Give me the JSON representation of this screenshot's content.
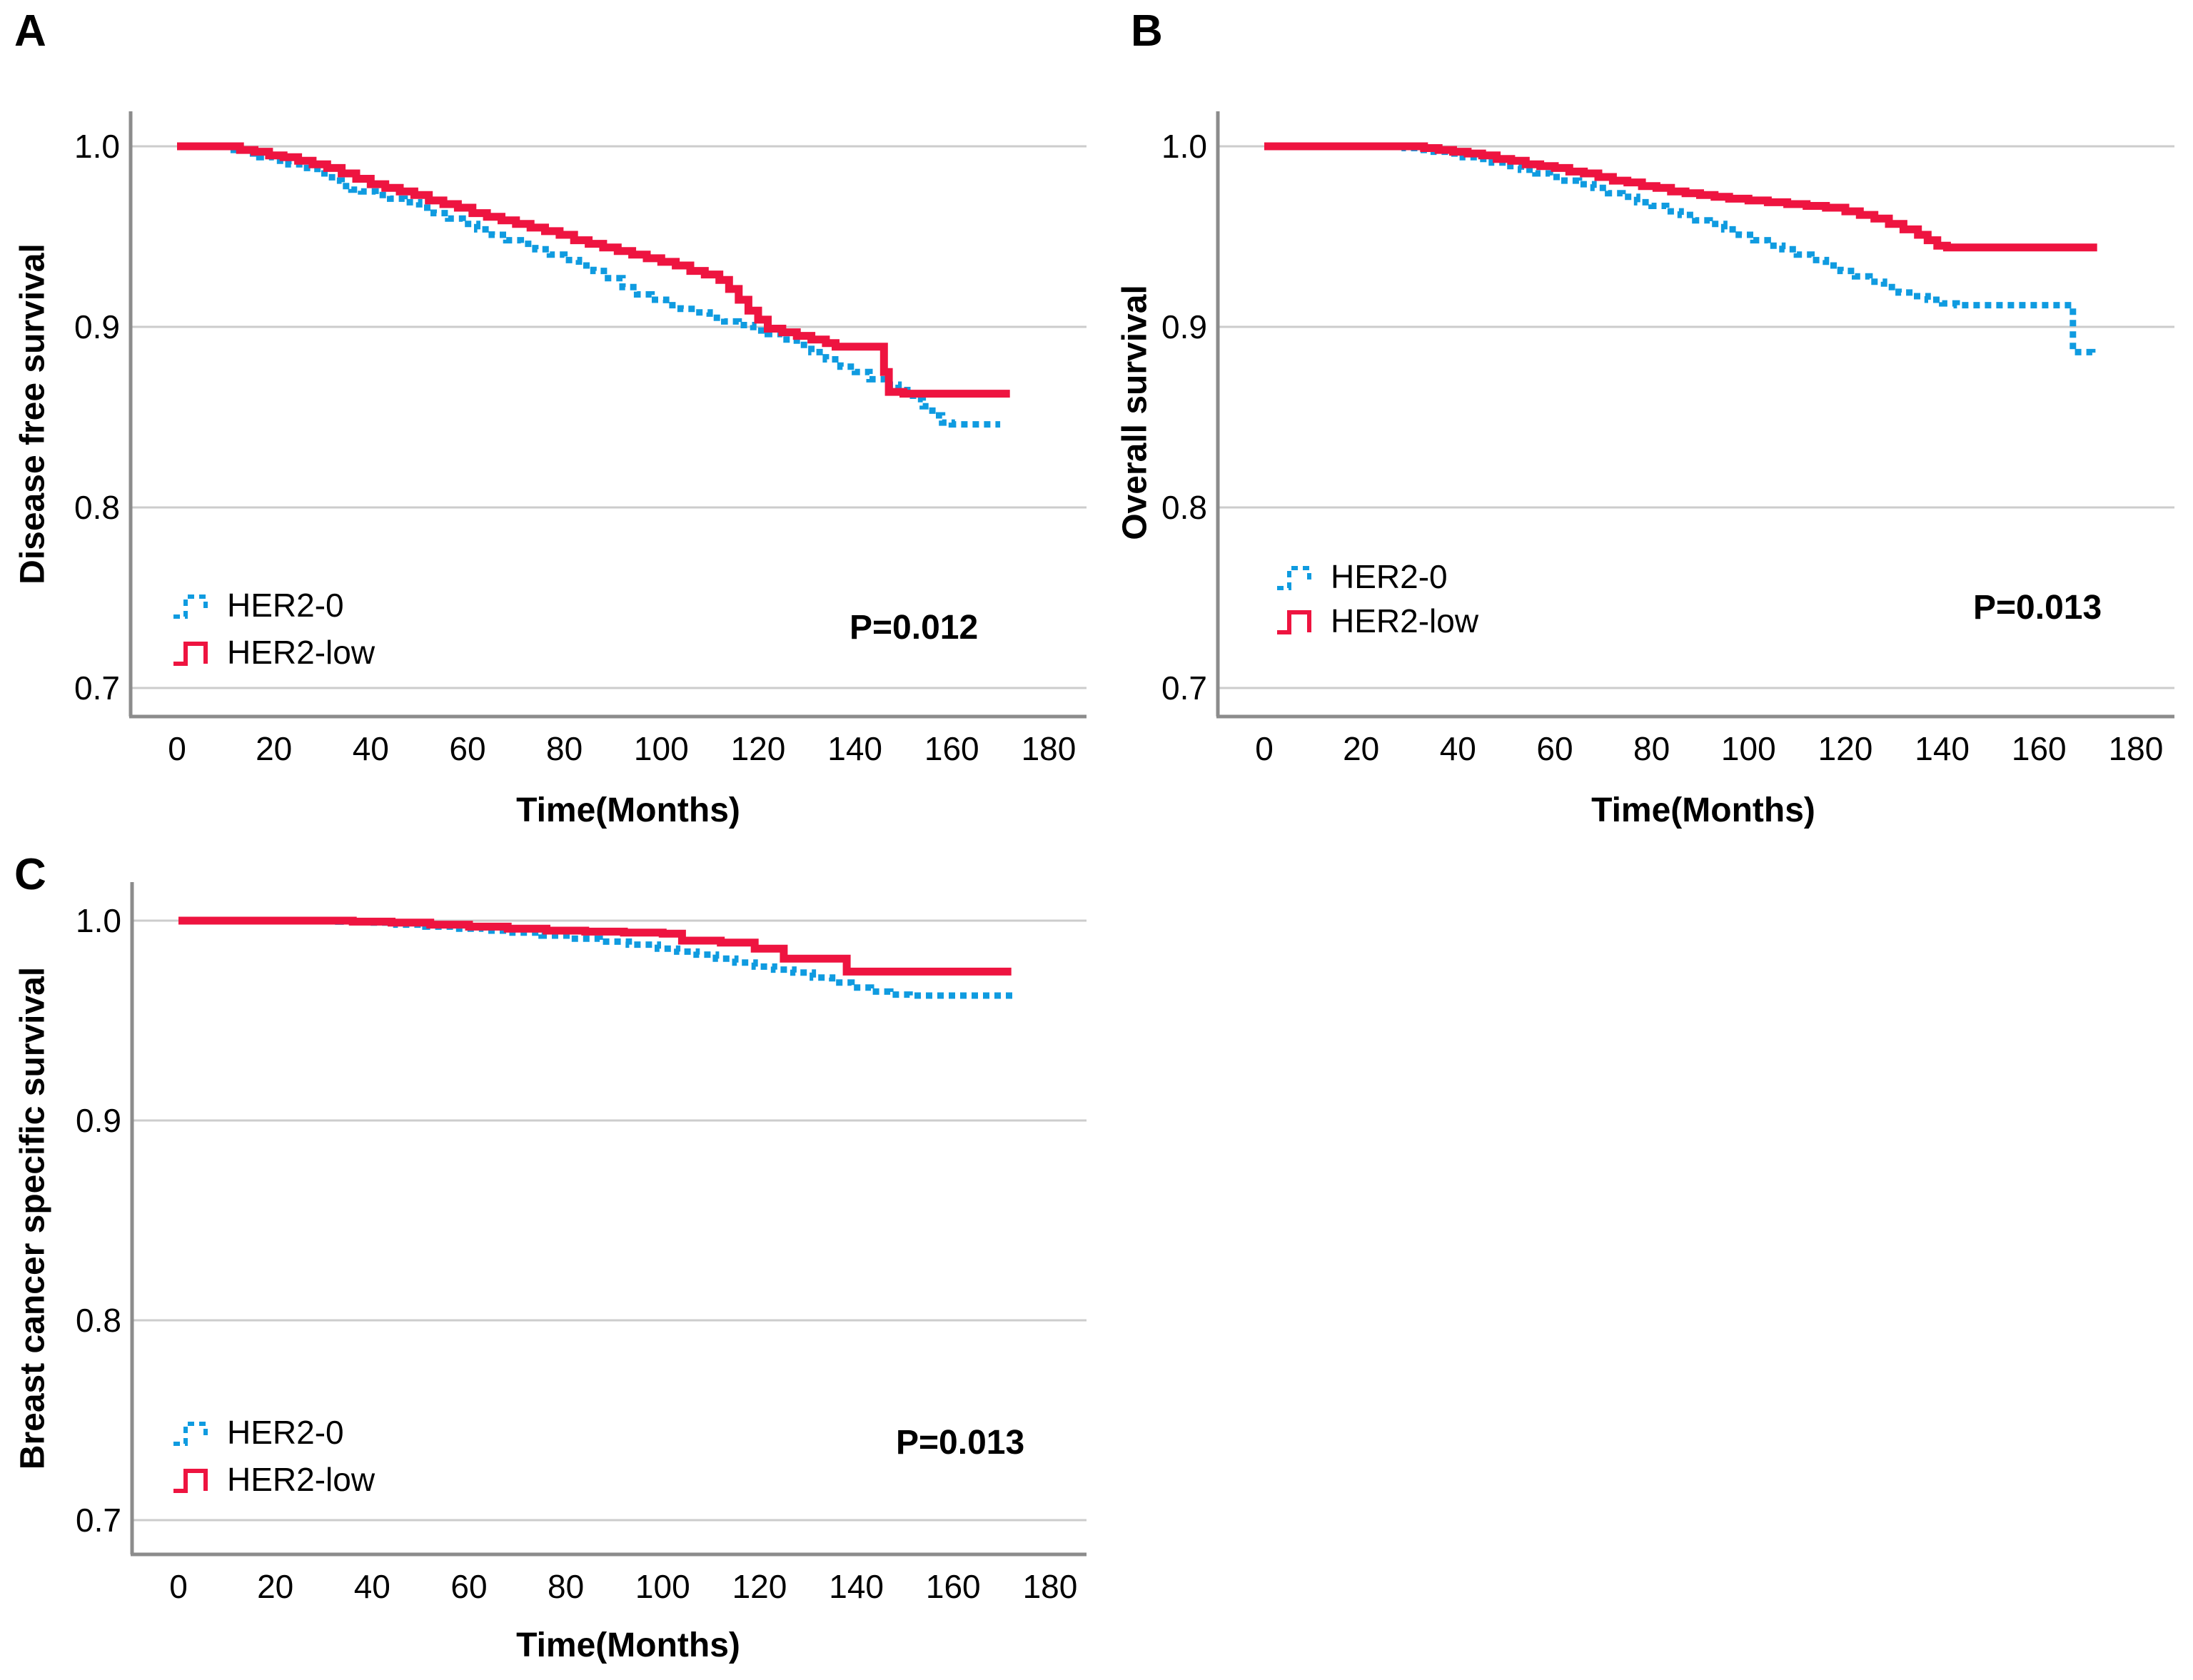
{
  "figure_background": "#ffffff",
  "colors": {
    "her2_0": "#0F9BE0",
    "her2_low": "#EE1440",
    "grid": "#CCCCCC",
    "axis": "#8C8C8C",
    "text": "#000000"
  },
  "legend": {
    "items": [
      {
        "label": "HER2-0",
        "key": "her2_0",
        "line_style": "dashed"
      },
      {
        "label": "HER2-low",
        "key": "her2_low",
        "line_style": "solid"
      }
    ]
  },
  "chart_data": [
    {
      "type": "line",
      "subtype": "kaplan-meier-step",
      "letter": "A",
      "ylabel": "Disease free survival",
      "xlabel": "Time(Months)",
      "p_value": "P=0.012",
      "x_ticks": [
        0,
        20,
        40,
        60,
        80,
        100,
        120,
        140,
        160,
        180
      ],
      "y_ticks": [
        "1.0",
        "0.9",
        "0.8",
        "0.7"
      ],
      "xlim": [
        0,
        188
      ],
      "ylim": [
        0.685,
        1.018
      ],
      "grid": "horizontal",
      "legend_position": "lower-left",
      "series": [
        {
          "name": "HER2-0",
          "color_key": "her2_0",
          "style": "dotted",
          "points": [
            [
              0,
              1.0
            ],
            [
              8,
              1.0
            ],
            [
              11,
              0.998
            ],
            [
              14,
              0.996
            ],
            [
              17,
              0.994
            ],
            [
              20,
              0.992
            ],
            [
              23,
              0.99
            ],
            [
              26,
              0.988
            ],
            [
              29,
              0.985
            ],
            [
              32,
              0.981
            ],
            [
              34,
              0.978
            ],
            [
              36,
              0.976
            ],
            [
              38,
              0.975
            ],
            [
              41,
              0.973
            ],
            [
              44,
              0.971
            ],
            [
              47,
              0.969
            ],
            [
              50,
              0.966
            ],
            [
              53,
              0.963
            ],
            [
              56,
              0.96
            ],
            [
              59,
              0.957
            ],
            [
              62,
              0.954
            ],
            [
              65,
              0.951
            ],
            [
              68,
              0.948
            ],
            [
              71,
              0.946
            ],
            [
              74,
              0.943
            ],
            [
              77,
              0.94
            ],
            [
              80,
              0.937
            ],
            [
              83,
              0.934
            ],
            [
              86,
              0.931
            ],
            [
              89,
              0.927
            ],
            [
              92,
              0.922
            ],
            [
              95,
              0.918
            ],
            [
              98,
              0.915
            ],
            [
              101,
              0.912
            ],
            [
              104,
              0.91
            ],
            [
              107,
              0.908
            ],
            [
              110,
              0.905
            ],
            [
              113,
              0.903
            ],
            [
              116,
              0.901
            ],
            [
              119,
              0.898
            ],
            [
              122,
              0.896
            ],
            [
              125,
              0.893
            ],
            [
              128,
              0.89
            ],
            [
              131,
              0.886
            ],
            [
              134,
              0.882
            ],
            [
              137,
              0.878
            ],
            [
              140,
              0.875
            ],
            [
              143,
              0.871
            ],
            [
              146,
              0.868
            ],
            [
              149,
              0.865
            ],
            [
              152,
              0.86
            ],
            [
              154,
              0.856
            ],
            [
              156,
              0.851
            ],
            [
              158,
              0.847
            ],
            [
              160,
              0.846
            ],
            [
              170,
              0.846
            ]
          ]
        },
        {
          "name": "HER2-low",
          "color_key": "her2_low",
          "style": "solid",
          "points": [
            [
              0,
              1.0
            ],
            [
              10,
              1.0
            ],
            [
              13,
              0.998
            ],
            [
              16,
              0.997
            ],
            [
              19,
              0.995
            ],
            [
              22,
              0.994
            ],
            [
              25,
              0.992
            ],
            [
              28,
              0.99
            ],
            [
              31,
              0.988
            ],
            [
              34,
              0.985
            ],
            [
              37,
              0.982
            ],
            [
              40,
              0.979
            ],
            [
              43,
              0.977
            ],
            [
              46,
              0.975
            ],
            [
              49,
              0.973
            ],
            [
              52,
              0.97
            ],
            [
              55,
              0.968
            ],
            [
              58,
              0.966
            ],
            [
              61,
              0.963
            ],
            [
              64,
              0.961
            ],
            [
              67,
              0.959
            ],
            [
              70,
              0.957
            ],
            [
              73,
              0.955
            ],
            [
              76,
              0.953
            ],
            [
              79,
              0.951
            ],
            [
              82,
              0.948
            ],
            [
              85,
              0.946
            ],
            [
              88,
              0.944
            ],
            [
              91,
              0.942
            ],
            [
              94,
              0.94
            ],
            [
              97,
              0.938
            ],
            [
              100,
              0.936
            ],
            [
              103,
              0.934
            ],
            [
              106,
              0.931
            ],
            [
              109,
              0.929
            ],
            [
              112,
              0.926
            ],
            [
              114,
              0.921
            ],
            [
              116,
              0.915
            ],
            [
              118,
              0.909
            ],
            [
              120,
              0.904
            ],
            [
              122,
              0.899
            ],
            [
              125,
              0.897
            ],
            [
              128,
              0.895
            ],
            [
              131,
              0.893
            ],
            [
              134,
              0.891
            ],
            [
              136,
              0.889
            ],
            [
              145,
              0.889
            ],
            [
              146,
              0.875
            ],
            [
              147,
              0.864
            ],
            [
              150,
              0.863
            ],
            [
              172,
              0.863
            ]
          ]
        }
      ]
    },
    {
      "type": "line",
      "subtype": "kaplan-meier-step",
      "letter": "B",
      "ylabel": "Overall survival",
      "xlabel": "Time(Months)",
      "p_value": "P=0.013",
      "x_ticks": [
        0,
        20,
        40,
        60,
        80,
        100,
        120,
        140,
        160,
        180
      ],
      "y_ticks": [
        "1.0",
        "0.9",
        "0.8",
        "0.7"
      ],
      "xlim": [
        0,
        188
      ],
      "ylim": [
        0.685,
        1.018
      ],
      "grid": "horizontal",
      "legend_position": "lower-left",
      "series": [
        {
          "name": "HER2-0",
          "color_key": "her2_0",
          "style": "dotted",
          "points": [
            [
              0,
              1.0
            ],
            [
              26,
              1.0
            ],
            [
              29,
              0.999
            ],
            [
              32,
              0.998
            ],
            [
              35,
              0.997
            ],
            [
              38,
              0.996
            ],
            [
              41,
              0.994
            ],
            [
              44,
              0.993
            ],
            [
              47,
              0.991
            ],
            [
              50,
              0.989
            ],
            [
              53,
              0.987
            ],
            [
              56,
              0.985
            ],
            [
              59,
              0.983
            ],
            [
              62,
              0.981
            ],
            [
              65,
              0.979
            ],
            [
              68,
              0.977
            ],
            [
              71,
              0.974
            ],
            [
              74,
              0.972
            ],
            [
              77,
              0.969
            ],
            [
              80,
              0.967
            ],
            [
              83,
              0.964
            ],
            [
              86,
              0.962
            ],
            [
              89,
              0.959
            ],
            [
              92,
              0.957
            ],
            [
              95,
              0.954
            ],
            [
              98,
              0.951
            ],
            [
              101,
              0.948
            ],
            [
              104,
              0.945
            ],
            [
              107,
              0.943
            ],
            [
              110,
              0.94
            ],
            [
              113,
              0.937
            ],
            [
              116,
              0.934
            ],
            [
              119,
              0.931
            ],
            [
              122,
              0.928
            ],
            [
              125,
              0.925
            ],
            [
              128,
              0.922
            ],
            [
              131,
              0.919
            ],
            [
              134,
              0.917
            ],
            [
              137,
              0.915
            ],
            [
              140,
              0.913
            ],
            [
              143,
              0.912
            ],
            [
              166,
              0.912
            ],
            [
              167,
              0.886
            ],
            [
              171,
              0.885
            ]
          ]
        },
        {
          "name": "HER2-low",
          "color_key": "her2_low",
          "style": "solid",
          "points": [
            [
              0,
              1.0
            ],
            [
              30,
              1.0
            ],
            [
              33,
              0.999
            ],
            [
              36,
              0.998
            ],
            [
              39,
              0.997
            ],
            [
              42,
              0.996
            ],
            [
              45,
              0.995
            ],
            [
              48,
              0.993
            ],
            [
              51,
              0.992
            ],
            [
              54,
              0.99
            ],
            [
              57,
              0.989
            ],
            [
              60,
              0.988
            ],
            [
              63,
              0.986
            ],
            [
              66,
              0.985
            ],
            [
              69,
              0.983
            ],
            [
              72,
              0.981
            ],
            [
              75,
              0.98
            ],
            [
              78,
              0.978
            ],
            [
              81,
              0.977
            ],
            [
              84,
              0.975
            ],
            [
              87,
              0.974
            ],
            [
              90,
              0.973
            ],
            [
              93,
              0.972
            ],
            [
              96,
              0.971
            ],
            [
              100,
              0.97
            ],
            [
              104,
              0.969
            ],
            [
              108,
              0.968
            ],
            [
              112,
              0.967
            ],
            [
              116,
              0.966
            ],
            [
              120,
              0.964
            ],
            [
              123,
              0.962
            ],
            [
              126,
              0.96
            ],
            [
              129,
              0.957
            ],
            [
              132,
              0.954
            ],
            [
              135,
              0.951
            ],
            [
              137,
              0.948
            ],
            [
              139,
              0.945
            ],
            [
              141,
              0.944
            ],
            [
              172,
              0.944
            ]
          ]
        }
      ]
    },
    {
      "type": "line",
      "subtype": "kaplan-meier-step",
      "letter": "C",
      "ylabel": "Breast cancer specific survival",
      "xlabel": "Time(Months)",
      "p_value": "P=0.013",
      "x_ticks": [
        0,
        20,
        40,
        60,
        80,
        100,
        120,
        140,
        160,
        180
      ],
      "y_ticks": [
        "1.0",
        "0.9",
        "0.8",
        "0.7"
      ],
      "xlim": [
        0,
        188
      ],
      "ylim": [
        0.683,
        1.019
      ],
      "grid": "horizontal",
      "legend_position": "lower-left",
      "series": [
        {
          "name": "HER2-0",
          "color_key": "her2_0",
          "style": "dotted",
          "points": [
            [
              0,
              1.0
            ],
            [
              27,
              1.0
            ],
            [
              33,
              0.9995
            ],
            [
              39,
              0.999
            ],
            [
              45,
              0.998
            ],
            [
              51,
              0.997
            ],
            [
              57,
              0.996
            ],
            [
              63,
              0.995
            ],
            [
              69,
              0.994
            ],
            [
              75,
              0.9925
            ],
            [
              81,
              0.991
            ],
            [
              87,
              0.9895
            ],
            [
              93,
              0.988
            ],
            [
              99,
              0.986
            ],
            [
              103,
              0.9845
            ],
            [
              107,
              0.983
            ],
            [
              111,
              0.981
            ],
            [
              115,
              0.979
            ],
            [
              119,
              0.977
            ],
            [
              123,
              0.9755
            ],
            [
              127,
              0.974
            ],
            [
              131,
              0.9715
            ],
            [
              135,
              0.969
            ],
            [
              139,
              0.9665
            ],
            [
              143,
              0.9645
            ],
            [
              147,
              0.963
            ],
            [
              151,
              0.9625
            ],
            [
              173,
              0.9625
            ]
          ]
        },
        {
          "name": "HER2-low",
          "color_key": "her2_low",
          "style": "solid",
          "points": [
            [
              0,
              1.0
            ],
            [
              30,
              1.0
            ],
            [
              36,
              0.9995
            ],
            [
              44,
              0.999
            ],
            [
              52,
              0.998
            ],
            [
              60,
              0.997
            ],
            [
              68,
              0.996
            ],
            [
              76,
              0.995
            ],
            [
              84,
              0.9945
            ],
            [
              92,
              0.994
            ],
            [
              100,
              0.9935
            ],
            [
              104,
              0.99
            ],
            [
              112,
              0.989
            ],
            [
              119,
              0.986
            ],
            [
              125,
              0.981
            ],
            [
              138,
              0.9745
            ],
            [
              172,
              0.9745
            ]
          ]
        }
      ]
    }
  ]
}
